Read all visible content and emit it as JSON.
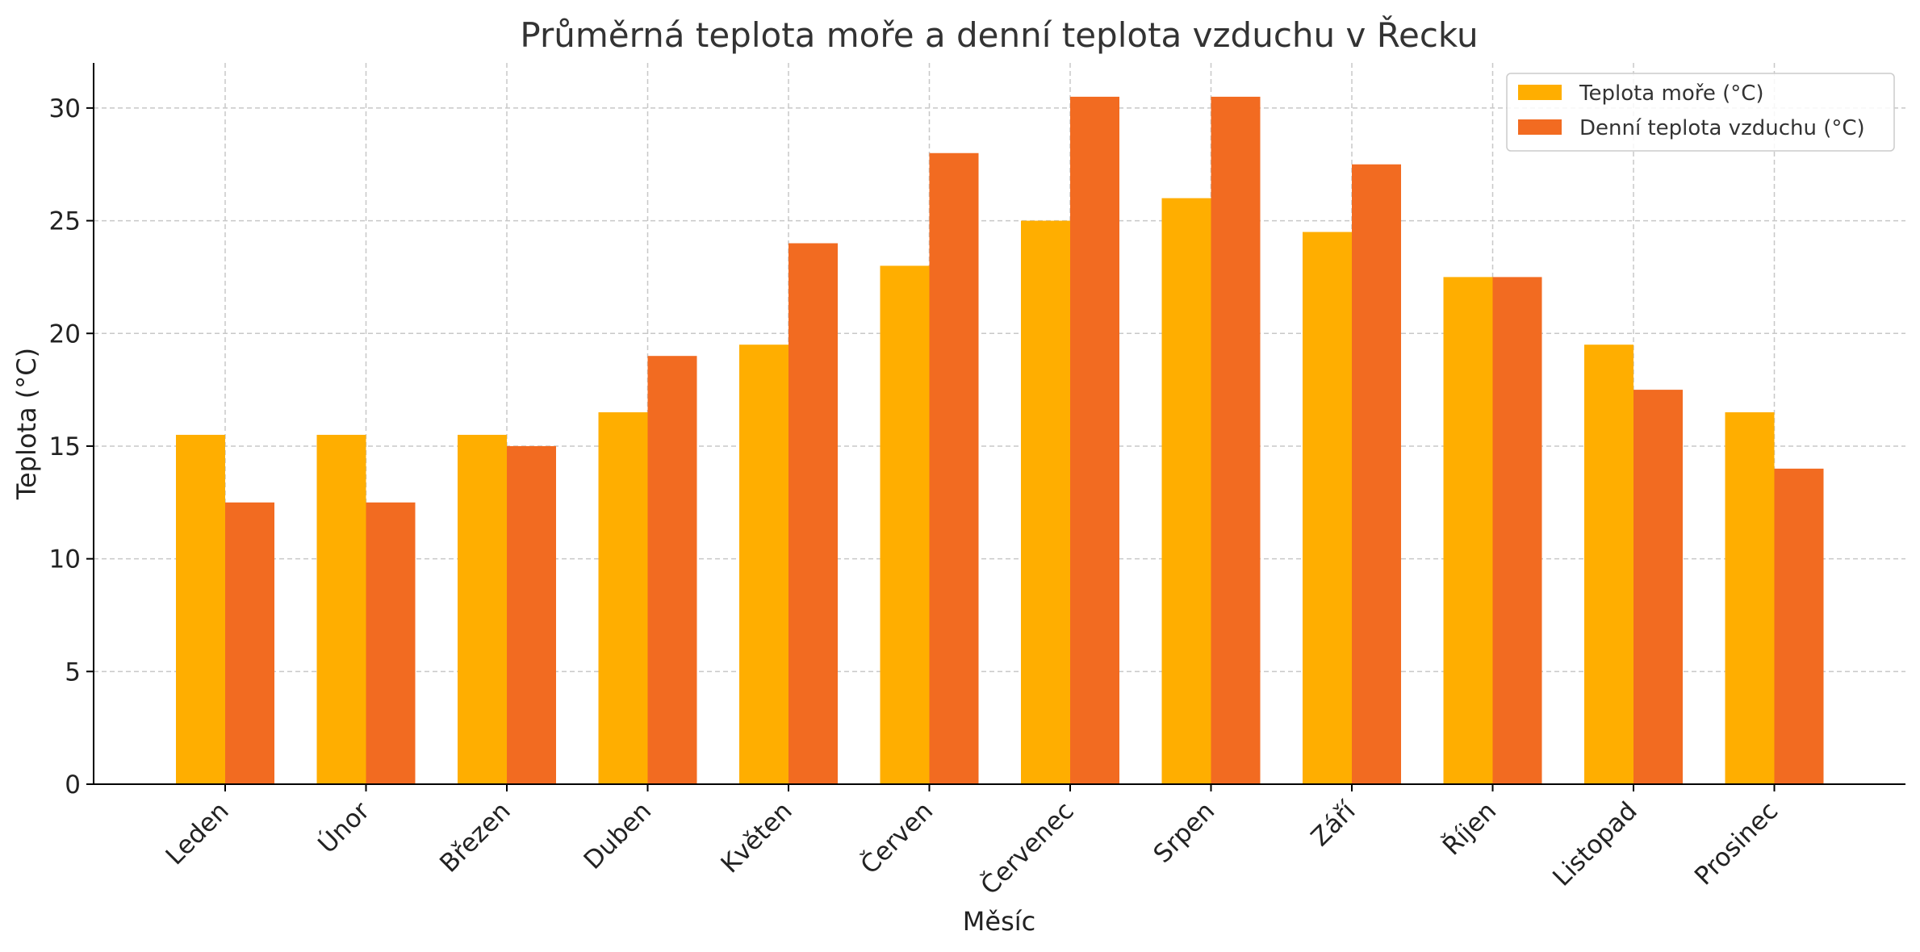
{
  "chart_data": {
    "type": "bar",
    "title": "Průměrná teplota moře a denní teplota vzduchu v Řecku",
    "xlabel": "Měsíc",
    "ylabel": "Teplota (°C)",
    "categories": [
      "Leden",
      "Únor",
      "Březen",
      "Duben",
      "Květen",
      "Červen",
      "Červenec",
      "Srpen",
      "Září",
      "Říjen",
      "Listopad",
      "Prosinec"
    ],
    "series": [
      {
        "name": "Teplota moře (°C)",
        "color": "#FFAE00",
        "values": [
          15.5,
          15.5,
          15.5,
          16.5,
          19.5,
          23,
          25,
          26,
          24.5,
          22.5,
          19.5,
          16.5
        ]
      },
      {
        "name": "Denní teplota vzduchu (°C)",
        "color": "#F26B21",
        "values": [
          12.5,
          12.5,
          15,
          19,
          24,
          28,
          30.5,
          30.5,
          27.5,
          22.5,
          17.5,
          14
        ]
      }
    ],
    "ylim": [
      0,
      32
    ],
    "yticks": [
      0,
      5,
      10,
      15,
      20,
      25,
      30
    ],
    "grid": true,
    "legend": "top-right"
  }
}
